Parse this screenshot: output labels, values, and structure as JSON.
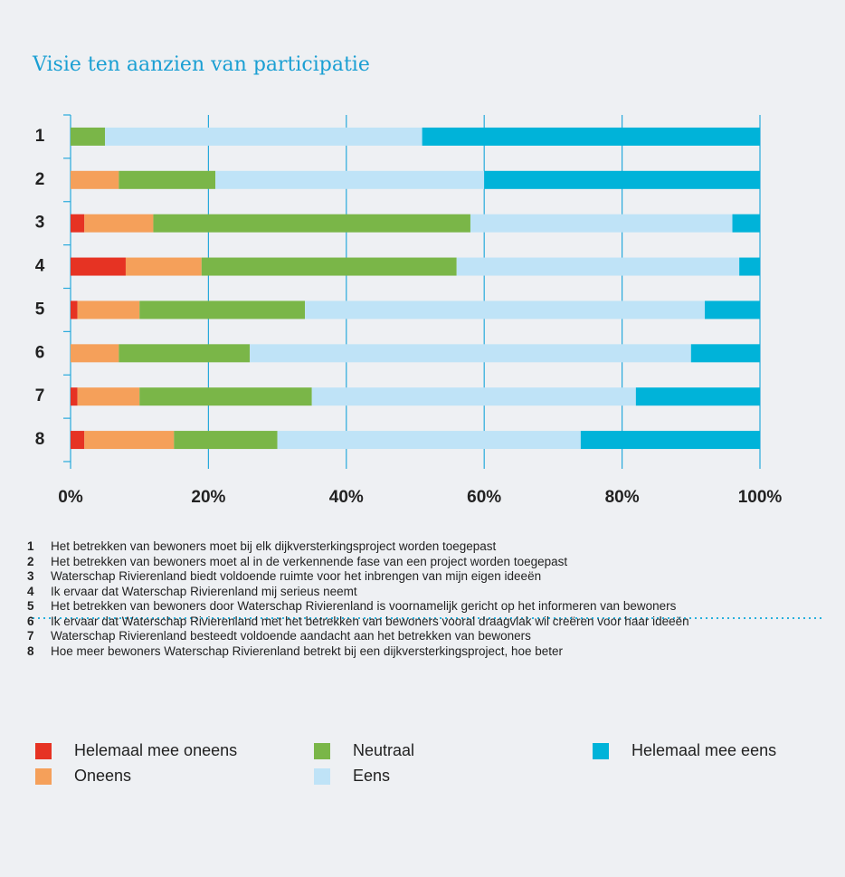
{
  "chart_data": {
    "type": "stacked_barh",
    "title": "Visie ten aanzien van participatie",
    "categories": [
      "1",
      "2",
      "3",
      "4",
      "5",
      "6",
      "7",
      "8"
    ],
    "series": [
      {
        "name": "Helemaal mee oneens",
        "color": "#e63323",
        "values": [
          0,
          0,
          2,
          8,
          1,
          0,
          1,
          2
        ]
      },
      {
        "name": "Oneens",
        "color": "#f5a05a",
        "values": [
          0,
          7,
          10,
          11,
          9,
          7,
          9,
          13
        ]
      },
      {
        "name": "Neutraal",
        "color": "#7ab648",
        "values": [
          5,
          14,
          46,
          37,
          24,
          19,
          25,
          15
        ]
      },
      {
        "name": "Eens",
        "color": "#bfe3f7",
        "values": [
          46,
          39,
          38,
          41,
          58,
          64,
          47,
          44
        ]
      },
      {
        "name": "Helemaal mee eens",
        "color": "#00b3d9",
        "values": [
          49,
          40,
          4,
          3,
          8,
          10,
          18,
          26
        ]
      }
    ],
    "xlim": [
      0,
      100
    ],
    "xticks": [
      {
        "value": 0,
        "label": "0%"
      },
      {
        "value": 20,
        "label": "20%"
      },
      {
        "value": 40,
        "label": "40%"
      },
      {
        "value": 60,
        "label": "60%"
      },
      {
        "value": 80,
        "label": "80%"
      },
      {
        "value": 100,
        "label": "100%"
      }
    ],
    "grid": true,
    "notes": [
      {
        "number": "1",
        "text": "Het betrekken van bewoners moet bij elk dijkversterkingsproject worden toegepast"
      },
      {
        "number": "2",
        "text": "Het betrekken van bewoners moet al in de verkennende fase van een project worden toegepast"
      },
      {
        "number": "3",
        "text": "Waterschap Rivierenland biedt voldoende ruimte voor het inbrengen van mijn eigen ideeën"
      },
      {
        "number": "4",
        "text": "Ik ervaar dat Waterschap Rivierenland mij serieus neemt"
      },
      {
        "number": "5",
        "text": "Het betrekken van bewoners door Waterschap Rivierenland is voornamelijk gericht op het informeren van bewoners"
      },
      {
        "number": "6",
        "text": "Ik ervaar dat Waterschap Rivierenland met het betrekken van bewoners vooral draagvlak wil creëren voor haar ideeën"
      },
      {
        "number": "7",
        "text": "Waterschap Rivierenland besteedt voldoende aandacht aan het betrekken van bewoners"
      },
      {
        "number": "8",
        "text": "Hoe meer bewoners Waterschap Rivierenland betrekt bij een dijkversterkingsproject, hoe beter"
      }
    ]
  }
}
